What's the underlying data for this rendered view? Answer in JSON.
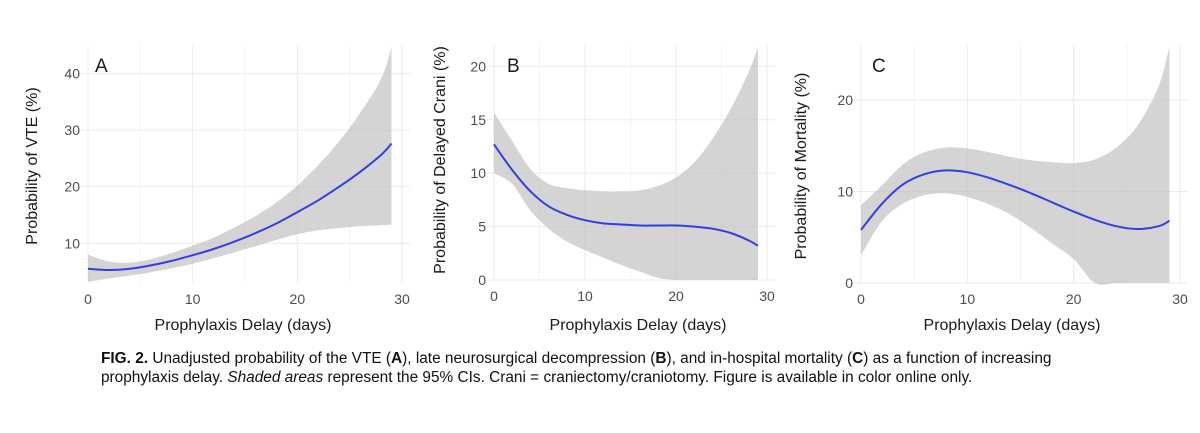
{
  "colors": {
    "line": "#2f3fe0",
    "band": "#bdbdbd",
    "grid": "#ebebeb"
  },
  "chart_data": [
    {
      "type": "line",
      "panel": "A",
      "xlabel": "Prophylaxis Delay (days)",
      "ylabel": "Probability of VTE (%)",
      "xlim": [
        0,
        30
      ],
      "ylim": [
        3,
        45
      ],
      "xticks": [
        0,
        10,
        20,
        30
      ],
      "yticks": [
        10,
        20,
        30,
        40
      ],
      "x": [
        0,
        2,
        4,
        6,
        8,
        10,
        12,
        14,
        16,
        18,
        20,
        22,
        24,
        26,
        28,
        29
      ],
      "y": [
        5.5,
        5.3,
        5.5,
        6.1,
        6.9,
        7.9,
        9.0,
        10.3,
        11.8,
        13.5,
        15.5,
        17.6,
        20.0,
        22.6,
        25.6,
        27.6
      ],
      "lower": [
        3.2,
        3.8,
        4.3,
        4.9,
        5.6,
        6.4,
        7.4,
        8.4,
        9.5,
        10.6,
        11.6,
        12.3,
        12.7,
        13.0,
        13.2,
        13.3
      ],
      "upper": [
        8.0,
        6.8,
        6.6,
        7.2,
        8.3,
        9.6,
        11.0,
        12.8,
        14.8,
        17.2,
        20.2,
        23.8,
        28.0,
        33.0,
        39.0,
        44.5
      ],
      "grid": true
    },
    {
      "type": "line",
      "panel": "B",
      "xlabel": "Prophylaxis Delay (days)",
      "ylabel": "Probability of Delayed Crani (%)",
      "xlim": [
        0,
        30
      ],
      "ylim": [
        0,
        22
      ],
      "xticks": [
        0,
        10,
        20,
        30
      ],
      "yticks": [
        0,
        5,
        10,
        15,
        20
      ],
      "x": [
        0,
        2,
        4,
        6,
        8,
        10,
        12,
        14,
        16,
        18,
        20,
        22,
        24,
        26,
        28,
        29
      ],
      "y": [
        12.7,
        10.3,
        8.3,
        6.9,
        6.1,
        5.6,
        5.3,
        5.2,
        5.1,
        5.1,
        5.1,
        5.0,
        4.8,
        4.4,
        3.7,
        3.2
      ],
      "lower": [
        10.0,
        9.0,
        6.5,
        4.8,
        3.6,
        2.8,
        2.1,
        1.4,
        0.8,
        0.2,
        0.0,
        0.0,
        0.0,
        0.0,
        0.0,
        0.0
      ],
      "upper": [
        15.7,
        13.0,
        10.4,
        9.0,
        8.6,
        8.4,
        8.3,
        8.3,
        8.4,
        8.8,
        9.6,
        11.0,
        13.2,
        16.0,
        19.5,
        21.8
      ],
      "grid": true
    },
    {
      "type": "line",
      "panel": "C",
      "xlabel": "Prophylaxis Delay (days)",
      "ylabel": "Probability of Mortality (%)",
      "xlim": [
        0,
        30
      ],
      "ylim": [
        0,
        26
      ],
      "xticks": [
        0,
        10,
        20,
        30
      ],
      "yticks": [
        0,
        10,
        20
      ],
      "x": [
        0,
        2,
        4,
        6,
        8,
        10,
        12,
        14,
        16,
        18,
        20,
        22,
        24,
        26,
        28,
        29
      ],
      "y": [
        5.8,
        8.7,
        10.8,
        11.9,
        12.3,
        12.1,
        11.5,
        10.7,
        9.8,
        8.8,
        7.8,
        6.9,
        6.2,
        5.9,
        6.2,
        6.8
      ],
      "lower": [
        3.0,
        6.8,
        8.7,
        9.6,
        9.8,
        9.4,
        8.6,
        7.5,
        6.0,
        4.3,
        2.6,
        0.0,
        0.0,
        0.0,
        0.0,
        0.0
      ],
      "upper": [
        8.5,
        10.7,
        13.0,
        14.3,
        14.8,
        14.7,
        14.3,
        13.8,
        13.4,
        13.2,
        13.1,
        13.5,
        14.8,
        17.2,
        21.5,
        25.8
      ],
      "grid": true
    }
  ],
  "caption": {
    "fig_label": "FIG. 2.",
    "t1": " Unadjusted probability of the VTE (",
    "a": "A",
    "t2": "), late neurosurgical decompression (",
    "b": "B",
    "t3": "), and in-hospital mortality (",
    "c": "C",
    "t4": ") as a function of increasing prophylaxis delay. ",
    "shaded": "Shaded areas",
    "t5": " represent the 95% CIs. Crani = craniectomy/craniotomy. Figure is available in color online only."
  }
}
